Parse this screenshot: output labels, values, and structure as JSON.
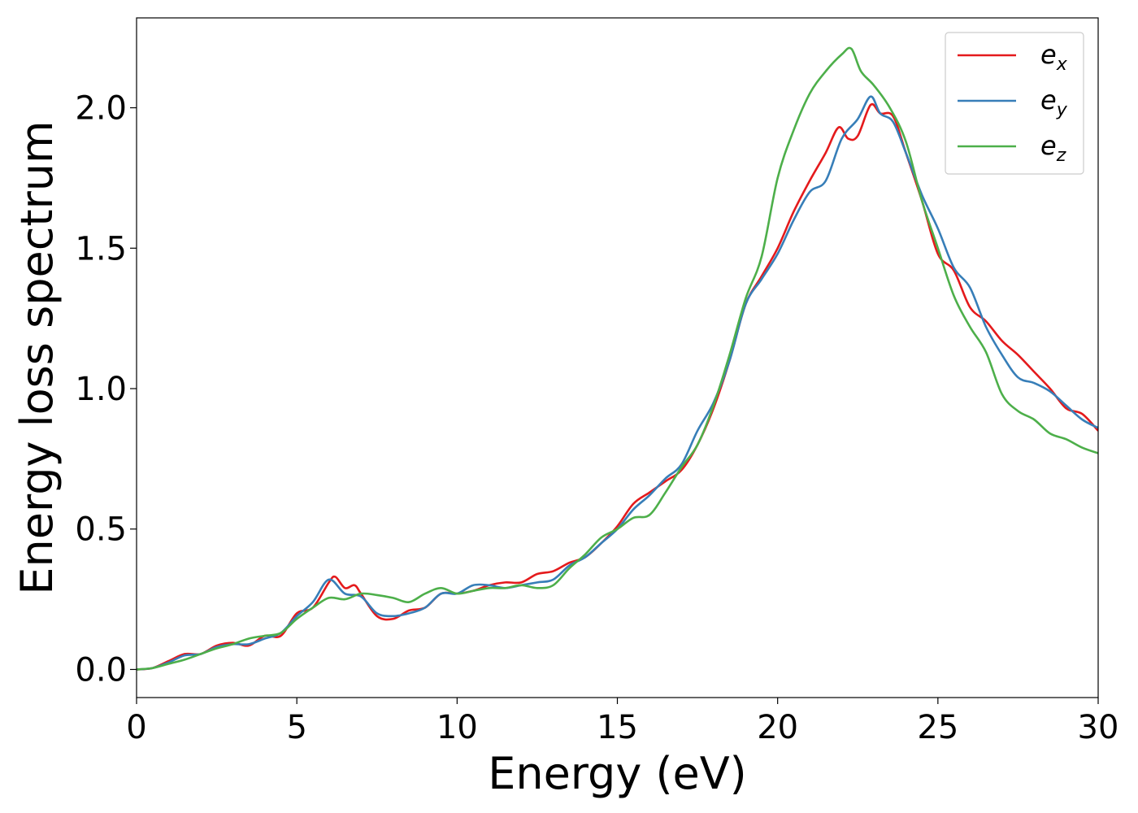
{
  "chart_data": {
    "type": "line",
    "xlabel": "Energy (eV)",
    "ylabel": "Energy loss spectrum",
    "xlim": [
      0,
      30
    ],
    "ylim": [
      -0.1,
      2.32
    ],
    "xticks": [
      0,
      5,
      10,
      15,
      20,
      25,
      30
    ],
    "xtick_labels": [
      "0",
      "5",
      "10",
      "15",
      "20",
      "25",
      "30"
    ],
    "yticks": [
      0.0,
      0.5,
      1.0,
      1.5,
      2.0
    ],
    "ytick_labels": [
      "0.0",
      "0.5",
      "1.0",
      "1.5",
      "2.0"
    ],
    "grid": false,
    "legend_position": "top-right",
    "series": [
      {
        "name": "e_x",
        "legend_base": "e",
        "legend_sub": "x",
        "color": "#e41a1c",
        "points": [
          [
            0,
            0.0
          ],
          [
            0.5,
            0.005
          ],
          [
            1,
            0.03
          ],
          [
            1.5,
            0.055
          ],
          [
            2,
            0.055
          ],
          [
            2.5,
            0.085
          ],
          [
            3,
            0.095
          ],
          [
            3.5,
            0.085
          ],
          [
            4,
            0.12
          ],
          [
            4.5,
            0.12
          ],
          [
            5,
            0.2
          ],
          [
            5.5,
            0.22
          ],
          [
            6,
            0.31
          ],
          [
            6.2,
            0.33
          ],
          [
            6.5,
            0.29
          ],
          [
            6.8,
            0.3
          ],
          [
            7,
            0.27
          ],
          [
            7.5,
            0.19
          ],
          [
            8,
            0.18
          ],
          [
            8.5,
            0.21
          ],
          [
            9,
            0.22
          ],
          [
            9.5,
            0.27
          ],
          [
            10,
            0.27
          ],
          [
            10.5,
            0.28
          ],
          [
            11,
            0.3
          ],
          [
            11.5,
            0.31
          ],
          [
            12,
            0.31
          ],
          [
            12.5,
            0.34
          ],
          [
            13,
            0.35
          ],
          [
            13.5,
            0.38
          ],
          [
            14,
            0.4
          ],
          [
            14.5,
            0.45
          ],
          [
            15,
            0.51
          ],
          [
            15.5,
            0.59
          ],
          [
            16,
            0.63
          ],
          [
            16.5,
            0.67
          ],
          [
            17,
            0.71
          ],
          [
            17.5,
            0.8
          ],
          [
            18,
            0.93
          ],
          [
            18.5,
            1.1
          ],
          [
            19,
            1.3
          ],
          [
            19.5,
            1.4
          ],
          [
            20,
            1.5
          ],
          [
            20.5,
            1.63
          ],
          [
            21,
            1.74
          ],
          [
            21.5,
            1.84
          ],
          [
            21.9,
            1.93
          ],
          [
            22.2,
            1.89
          ],
          [
            22.5,
            1.9
          ],
          [
            22.9,
            2.01
          ],
          [
            23.2,
            1.98
          ],
          [
            23.6,
            1.97
          ],
          [
            24,
            1.84
          ],
          [
            24.5,
            1.67
          ],
          [
            25,
            1.48
          ],
          [
            25.5,
            1.42
          ],
          [
            26,
            1.29
          ],
          [
            26.5,
            1.24
          ],
          [
            27,
            1.17
          ],
          [
            27.5,
            1.12
          ],
          [
            28,
            1.06
          ],
          [
            28.5,
            1.0
          ],
          [
            29,
            0.93
          ],
          [
            29.5,
            0.91
          ],
          [
            30,
            0.85
          ]
        ]
      },
      {
        "name": "e_y",
        "legend_base": "e",
        "legend_sub": "y",
        "color": "#377eb8",
        "points": [
          [
            0,
            0.0
          ],
          [
            0.5,
            0.005
          ],
          [
            1,
            0.025
          ],
          [
            1.5,
            0.05
          ],
          [
            2,
            0.055
          ],
          [
            2.5,
            0.08
          ],
          [
            3,
            0.09
          ],
          [
            3.5,
            0.09
          ],
          [
            4,
            0.11
          ],
          [
            4.5,
            0.13
          ],
          [
            5,
            0.19
          ],
          [
            5.5,
            0.24
          ],
          [
            6,
            0.32
          ],
          [
            6.5,
            0.27
          ],
          [
            7,
            0.26
          ],
          [
            7.5,
            0.2
          ],
          [
            8,
            0.19
          ],
          [
            8.5,
            0.2
          ],
          [
            9,
            0.22
          ],
          [
            9.5,
            0.27
          ],
          [
            10,
            0.27
          ],
          [
            10.5,
            0.3
          ],
          [
            11,
            0.3
          ],
          [
            11.5,
            0.29
          ],
          [
            12,
            0.3
          ],
          [
            12.5,
            0.31
          ],
          [
            13,
            0.32
          ],
          [
            13.5,
            0.37
          ],
          [
            14,
            0.4
          ],
          [
            14.5,
            0.45
          ],
          [
            15,
            0.5
          ],
          [
            15.5,
            0.57
          ],
          [
            16,
            0.62
          ],
          [
            16.5,
            0.68
          ],
          [
            17,
            0.73
          ],
          [
            17.5,
            0.85
          ],
          [
            18,
            0.95
          ],
          [
            18.5,
            1.1
          ],
          [
            19,
            1.3
          ],
          [
            19.5,
            1.39
          ],
          [
            20,
            1.48
          ],
          [
            20.5,
            1.6
          ],
          [
            21,
            1.7
          ],
          [
            21.5,
            1.74
          ],
          [
            22,
            1.89
          ],
          [
            22.5,
            1.96
          ],
          [
            22.9,
            2.04
          ],
          [
            23.2,
            1.98
          ],
          [
            23.6,
            1.95
          ],
          [
            24,
            1.84
          ],
          [
            24.5,
            1.69
          ],
          [
            25,
            1.57
          ],
          [
            25.5,
            1.43
          ],
          [
            26,
            1.36
          ],
          [
            26.5,
            1.22
          ],
          [
            27,
            1.12
          ],
          [
            27.5,
            1.04
          ],
          [
            28,
            1.02
          ],
          [
            28.5,
            0.99
          ],
          [
            29,
            0.94
          ],
          [
            29.5,
            0.89
          ],
          [
            30,
            0.86
          ]
        ]
      },
      {
        "name": "e_z",
        "legend_base": "e",
        "legend_sub": "z",
        "color": "#4daf4a",
        "points": [
          [
            0,
            0.0
          ],
          [
            0.5,
            0.005
          ],
          [
            1,
            0.02
          ],
          [
            1.5,
            0.035
          ],
          [
            2,
            0.055
          ],
          [
            2.5,
            0.075
          ],
          [
            3,
            0.09
          ],
          [
            3.5,
            0.11
          ],
          [
            4,
            0.12
          ],
          [
            4.5,
            0.13
          ],
          [
            5,
            0.18
          ],
          [
            5.5,
            0.22
          ],
          [
            6,
            0.255
          ],
          [
            6.5,
            0.25
          ],
          [
            7,
            0.27
          ],
          [
            7.5,
            0.265
          ],
          [
            8,
            0.255
          ],
          [
            8.5,
            0.24
          ],
          [
            9,
            0.27
          ],
          [
            9.5,
            0.29
          ],
          [
            10,
            0.27
          ],
          [
            10.5,
            0.28
          ],
          [
            11,
            0.29
          ],
          [
            11.5,
            0.29
          ],
          [
            12,
            0.3
          ],
          [
            12.5,
            0.29
          ],
          [
            13,
            0.3
          ],
          [
            13.5,
            0.36
          ],
          [
            14,
            0.41
          ],
          [
            14.5,
            0.47
          ],
          [
            15,
            0.5
          ],
          [
            15.5,
            0.54
          ],
          [
            16,
            0.55
          ],
          [
            16.5,
            0.63
          ],
          [
            17,
            0.72
          ],
          [
            17.5,
            0.8
          ],
          [
            18,
            0.94
          ],
          [
            18.5,
            1.12
          ],
          [
            19,
            1.32
          ],
          [
            19.5,
            1.47
          ],
          [
            20,
            1.75
          ],
          [
            20.5,
            1.92
          ],
          [
            21,
            2.05
          ],
          [
            21.5,
            2.13
          ],
          [
            22,
            2.19
          ],
          [
            22.3,
            2.21
          ],
          [
            22.6,
            2.13
          ],
          [
            23,
            2.08
          ],
          [
            23.5,
            2.0
          ],
          [
            24,
            1.88
          ],
          [
            24.5,
            1.67
          ],
          [
            25,
            1.5
          ],
          [
            25.5,
            1.33
          ],
          [
            26,
            1.22
          ],
          [
            26.5,
            1.13
          ],
          [
            27,
            0.98
          ],
          [
            27.5,
            0.92
          ],
          [
            28,
            0.89
          ],
          [
            28.5,
            0.84
          ],
          [
            29,
            0.82
          ],
          [
            29.5,
            0.79
          ],
          [
            30,
            0.77
          ]
        ]
      }
    ]
  }
}
